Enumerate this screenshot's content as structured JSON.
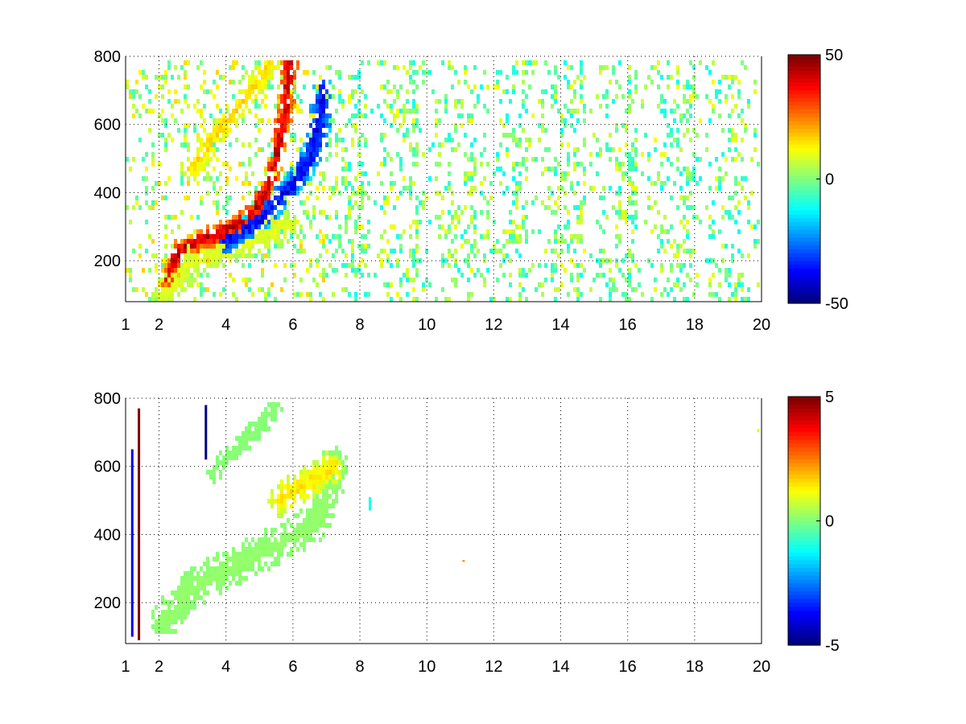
{
  "chart_data": [
    {
      "type": "heatmap",
      "title": "",
      "xlabel": "",
      "ylabel": "",
      "xlim": [
        1,
        20
      ],
      "ylim": [
        80,
        800
      ],
      "xticks": [
        1,
        2,
        4,
        6,
        8,
        10,
        12,
        14,
        16,
        18,
        20
      ],
      "yticks": [
        200,
        400,
        600,
        800
      ],
      "grid": true,
      "colormap": "jet",
      "colorbar": {
        "clim": [
          -50,
          50
        ],
        "ticks": [
          -50,
          0,
          50
        ]
      },
      "features": [
        {
          "name": "positive ridge",
          "points": [
            [
              2.3,
              150
            ],
            [
              2.6,
              230
            ],
            [
              3.0,
              250
            ],
            [
              4.0,
              290
            ],
            [
              4.8,
              340
            ],
            [
              5.2,
              400
            ],
            [
              5.5,
              500
            ],
            [
              5.8,
              650
            ],
            [
              5.9,
              780
            ]
          ],
          "value": 42,
          "spread_x": 0.16,
          "spread_y": 20
        },
        {
          "name": "negative ridge",
          "points": [
            [
              4.0,
              260
            ],
            [
              5.0,
              320
            ],
            [
              5.7,
              390
            ],
            [
              6.2,
              450
            ],
            [
              6.6,
              520
            ],
            [
              6.8,
              600
            ],
            [
              6.9,
              700
            ]
          ],
          "value": -38,
          "spread_x": 0.22,
          "spread_y": 22
        },
        {
          "name": "upper branch",
          "points": [
            [
              3.0,
              470
            ],
            [
              3.6,
              560
            ],
            [
              4.2,
              630
            ],
            [
              4.8,
              700
            ],
            [
              5.3,
              780
            ]
          ],
          "value": 16,
          "spread_x": 0.2,
          "spread_y": 22
        },
        {
          "name": "lower diffuse band",
          "points": [
            [
              2.2,
              110
            ],
            [
              3.0,
              200
            ],
            [
              4.0,
              240
            ],
            [
              5.0,
              270
            ],
            [
              5.8,
              300
            ]
          ],
          "value": 10,
          "spread_x": 0.3,
          "spread_y": 30
        }
      ],
      "noise_region_x": [
        7.0,
        20
      ],
      "noise_range": [
        -12,
        12
      ]
    },
    {
      "type": "heatmap",
      "title": "",
      "xlabel": "",
      "ylabel": "",
      "xlim": [
        1,
        20
      ],
      "ylim": [
        80,
        800
      ],
      "xticks": [
        1,
        2,
        4,
        6,
        8,
        10,
        12,
        14,
        16,
        18,
        20
      ],
      "yticks": [
        200,
        400,
        600,
        800
      ],
      "grid": true,
      "colormap": "jet",
      "colorbar": {
        "clim": [
          -5,
          5
        ],
        "ticks": [
          -5,
          0,
          5
        ]
      },
      "features": [
        {
          "name": "main band",
          "points": [
            [
              2.2,
              150
            ],
            [
              2.8,
              230
            ],
            [
              3.5,
              270
            ],
            [
              4.5,
              320
            ],
            [
              5.5,
              370
            ],
            [
              6.5,
              420
            ],
            [
              7.0,
              500
            ],
            [
              7.2,
              600
            ]
          ],
          "value": 0.2,
          "spread_x": 0.28,
          "spread_y": 35
        },
        {
          "name": "upper branch",
          "points": [
            [
              3.6,
              580
            ],
            [
              4.4,
              660
            ],
            [
              5.2,
              740
            ],
            [
              5.6,
              790
            ]
          ],
          "value": 0.1,
          "spread_x": 0.16,
          "spread_y": 18
        },
        {
          "name": "right lobe",
          "points": [
            [
              5.6,
              500
            ],
            [
              6.2,
              540
            ],
            [
              6.8,
              570
            ],
            [
              7.2,
              600
            ]
          ],
          "value": 1.5,
          "spread_x": 0.2,
          "spread_y": 30
        }
      ],
      "isolated": [
        {
          "x": 1.4,
          "y1": 90,
          "y2": 770,
          "value": 5
        },
        {
          "x": 1.2,
          "y1": 100,
          "y2": 650,
          "value": -4
        },
        {
          "x": 3.4,
          "y1": 620,
          "y2": 780,
          "value": -5
        },
        {
          "x": 11.1,
          "y1": 320,
          "y2": 325,
          "value": 2.5
        },
        {
          "x": 8.3,
          "y1": 470,
          "y2": 510,
          "value": -1
        },
        {
          "x": 19.9,
          "y1": 700,
          "y2": 710,
          "value": 1
        }
      ]
    }
  ]
}
